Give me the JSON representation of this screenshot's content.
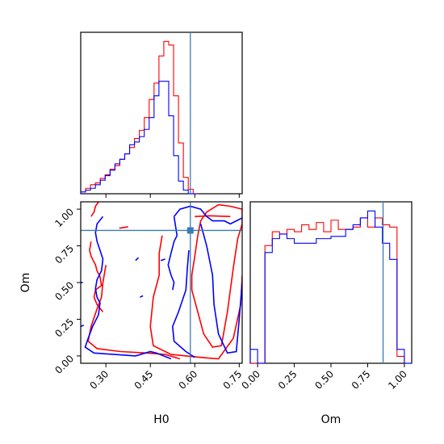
{
  "chart_data": {
    "type": "corner",
    "parameters": [
      {
        "name": "H0",
        "label": "H0",
        "range": [
          0.215,
          0.76
        ],
        "ticks": [
          "0.30",
          "0.45",
          "0.60",
          "0.75"
        ],
        "tick_values": [
          0.3,
          0.45,
          0.6,
          0.75
        ],
        "truth": 0.585
      },
      {
        "name": "Om",
        "label": "Om",
        "range": [
          -0.05,
          1.05
        ],
        "ticks": [
          "0.00",
          "0.25",
          "0.50",
          "0.75",
          "1.00"
        ],
        "tick_values": [
          0.0,
          0.25,
          0.5,
          0.75,
          1.0
        ],
        "truth": 0.855
      }
    ],
    "truth_color": "#3a7ab8",
    "series_colors": [
      "#ff0000",
      "#0000ff"
    ],
    "marginals": {
      "H0": {
        "bins_start": 0.215,
        "bins_width": 0.0165,
        "red": [
          2,
          6,
          10,
          12,
          17,
          21,
          27,
          31,
          38,
          44,
          51,
          61,
          70,
          84,
          104,
          122,
          152,
          168,
          164,
          108,
          56,
          18,
          5,
          0
        ],
        "blue": [
          2,
          4,
          6,
          10,
          15,
          20,
          26,
          33,
          38,
          44,
          54,
          57,
          63,
          71,
          84,
          108,
          124,
          124,
          86,
          42,
          14,
          4,
          0,
          0
        ]
      },
      "Om": {
        "bins_start": -0.05,
        "bins_width": 0.05,
        "red": [
          0,
          0,
          51,
          57,
          56,
          58,
          57,
          60,
          58,
          61,
          57,
          62,
          58,
          58,
          59,
          63,
          59,
          63,
          60,
          59,
          3,
          0
        ],
        "blue": [
          6,
          0,
          48,
          54,
          56,
          54,
          52,
          52,
          52,
          54,
          54,
          55,
          55,
          58,
          60,
          63,
          66,
          59,
          52,
          45,
          6,
          0
        ]
      }
    },
    "contours_2d": {
      "red": [
        [
          [
            0.59,
            0.45
          ],
          [
            0.61,
            0.3
          ],
          [
            0.63,
            0.15
          ],
          [
            0.66,
            0.06
          ],
          [
            0.69,
            0.07
          ],
          [
            0.71,
            0.3
          ],
          [
            0.73,
            0.6
          ],
          [
            0.745,
            0.8
          ],
          [
            0.76,
            0.9
          ],
          [
            0.76,
            1.0
          ],
          [
            0.72,
            1.02
          ],
          [
            0.68,
            1.03
          ],
          [
            0.64,
            0.98
          ],
          [
            0.62,
            0.92
          ],
          [
            0.61,
            0.82
          ],
          [
            0.6,
            0.68
          ],
          [
            0.59,
            0.55
          ],
          [
            0.59,
            0.45
          ]
        ],
        [
          [
            0.49,
            0.82
          ],
          [
            0.48,
            0.7
          ],
          [
            0.48,
            0.55
          ],
          [
            0.46,
            0.4
          ],
          [
            0.45,
            0.2
          ],
          [
            0.46,
            0.07
          ],
          [
            0.52,
            0.01
          ],
          [
            0.62,
            -0.01
          ],
          [
            0.68,
            -0.02
          ],
          [
            0.73,
            0.12
          ],
          [
            0.755,
            0.35
          ],
          [
            0.76,
            0.55
          ]
        ],
        [
          [
            0.3,
            0.62
          ],
          [
            0.29,
            0.5
          ],
          [
            0.285,
            0.4
          ],
          [
            0.27,
            0.32
          ],
          [
            0.25,
            0.2
          ],
          [
            0.24,
            0.1
          ],
          [
            0.27,
            0.05
          ],
          [
            0.35,
            0.03
          ],
          [
            0.44,
            0.02
          ],
          [
            0.5,
            0.01
          ],
          [
            0.55,
            -0.02
          ]
        ],
        [
          [
            0.25,
            0.78
          ],
          [
            0.245,
            0.72
          ],
          [
            0.25,
            0.68
          ],
          [
            0.265,
            0.62
          ],
          [
            0.27,
            0.58
          ],
          [
            0.28,
            0.54
          ],
          [
            0.285,
            0.48
          ],
          [
            0.265,
            0.45
          ],
          [
            0.26,
            0.4
          ],
          [
            0.27,
            0.35
          ],
          [
            0.29,
            0.3
          ]
        ],
        [
          [
            0.25,
            0.95
          ],
          [
            0.26,
            0.98
          ],
          [
            0.265,
            1.02
          ],
          [
            0.275,
            1.05
          ]
        ],
        [
          [
            0.345,
            0.87
          ],
          [
            0.375,
            0.88
          ]
        ],
        [
          [
            0.6,
            0.95
          ],
          [
            0.65,
            0.955
          ],
          [
            0.72,
            0.95
          ]
        ]
      ],
      "blue": [
        [
          [
            0.62,
            0.9
          ],
          [
            0.64,
            0.75
          ],
          [
            0.66,
            0.55
          ],
          [
            0.665,
            0.35
          ],
          [
            0.68,
            0.15
          ],
          [
            0.71,
            0.02
          ],
          [
            0.74,
            0.03
          ],
          [
            0.75,
            0.25
          ],
          [
            0.76,
            0.5
          ]
        ],
        [
          [
            0.58,
            0.72
          ],
          [
            0.575,
            0.6
          ],
          [
            0.57,
            0.45
          ],
          [
            0.545,
            0.3
          ],
          [
            0.525,
            0.2
          ],
          [
            0.53,
            0.1
          ],
          [
            0.57,
            0.03
          ],
          [
            0.6,
            -0.01
          ]
        ],
        [
          [
            0.53,
            0.95
          ],
          [
            0.54,
            0.82
          ],
          [
            0.53,
            0.78
          ],
          [
            0.52,
            0.7
          ],
          [
            0.51,
            0.62
          ],
          [
            0.52,
            0.55
          ],
          [
            0.53,
            0.5
          ],
          [
            0.525,
            0.45
          ]
        ],
        [
          [
            0.53,
            0.95
          ],
          [
            0.55,
            1.0
          ],
          [
            0.585,
            1.02
          ],
          [
            0.62,
            1.0
          ],
          [
            0.64,
            0.95
          ],
          [
            0.66,
            0.92
          ],
          [
            0.7,
            0.92
          ],
          [
            0.72,
            0.9
          ],
          [
            0.74,
            0.92
          ],
          [
            0.76,
            0.94
          ]
        ],
        [
          [
            0.29,
            0.95
          ],
          [
            0.27,
            0.9
          ],
          [
            0.265,
            0.84
          ],
          [
            0.27,
            0.78
          ],
          [
            0.28,
            0.72
          ],
          [
            0.29,
            0.66
          ],
          [
            0.285,
            0.58
          ],
          [
            0.27,
            0.52
          ],
          [
            0.265,
            0.46
          ],
          [
            0.27,
            0.4
          ],
          [
            0.28,
            0.36
          ],
          [
            0.275,
            0.28
          ],
          [
            0.255,
            0.2
          ],
          [
            0.24,
            0.12
          ],
          [
            0.23,
            0.06
          ],
          [
            0.26,
            0.02
          ],
          [
            0.33,
            0.01
          ],
          [
            0.4,
            0.0
          ],
          [
            0.45,
            0.03
          ],
          [
            0.47,
            0.02
          ],
          [
            0.52,
            -0.02
          ]
        ],
        [
          [
            0.215,
            0.2
          ],
          [
            0.225,
            0.21
          ]
        ],
        [
          [
            0.215,
            0.5
          ],
          [
            0.222,
            0.5
          ]
        ],
        [
          [
            0.485,
            0.65
          ],
          [
            0.5,
            0.66
          ]
        ],
        [
          [
            0.415,
            0.4
          ],
          [
            0.425,
            0.41
          ]
        ],
        [
          [
            0.4,
            0.65
          ],
          [
            0.41,
            0.67
          ]
        ]
      ]
    }
  }
}
